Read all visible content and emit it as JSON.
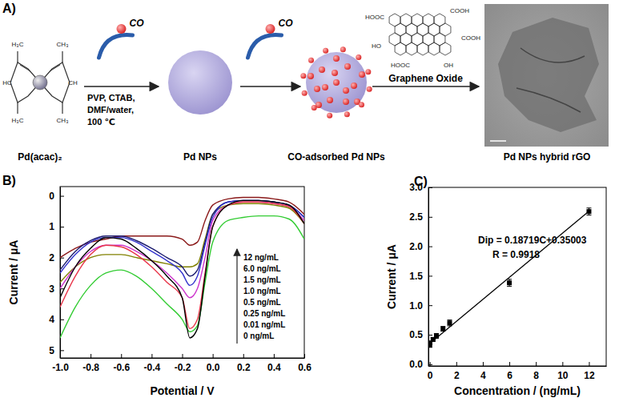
{
  "scheme": {
    "title": "A)",
    "steps": [
      {
        "label": "Pd(acac)₂"
      },
      {
        "label": "Pd NPs"
      },
      {
        "label": "CO-adsorbed Pd NPs"
      },
      {
        "label": "Pd NPs hybrid rGO"
      }
    ],
    "arrows": [
      {
        "molecule": "CO",
        "conditions": [
          "PVP, CTAB,",
          "DMF/water,",
          "100 ℃"
        ]
      },
      {
        "molecule": "CO"
      },
      {
        "label": "Graphene Oxide"
      }
    ],
    "acac_atoms": [
      "H₃C",
      "HC",
      "H₃C",
      "CH₃",
      "CH",
      "CH₃"
    ],
    "go_groups": [
      "HOOC",
      "COOH",
      "HO",
      "COOH",
      "HOOC",
      "OH"
    ]
  },
  "chart_data": [
    {
      "type": "line",
      "title": "B)",
      "x_label": "Potential / V",
      "y_label": "Current / μA",
      "x": [
        -1.0,
        -0.9,
        -0.8,
        -0.7,
        -0.6,
        -0.5,
        -0.4,
        -0.3,
        -0.2,
        -0.15,
        -0.1,
        -0.05,
        0.0,
        0.1,
        0.2,
        0.3,
        0.4,
        0.5,
        0.6
      ],
      "series": [
        {
          "name": "12 ng/mL",
          "color": "#8b1a1a",
          "values": [
            2.0,
            1.7,
            1.5,
            1.4,
            1.3,
            1.3,
            1.3,
            1.3,
            1.4,
            1.6,
            1.5,
            0.8,
            0.3,
            0.1,
            0.05,
            0.05,
            0.1,
            0.2,
            0.6
          ]
        },
        {
          "name": "6.0 ng/mL",
          "color": "#808000",
          "values": [
            2.8,
            2.3,
            2.0,
            1.9,
            1.9,
            2.0,
            2.1,
            2.2,
            2.3,
            2.3,
            2.2,
            1.4,
            0.6,
            0.3,
            0.25,
            0.25,
            0.3,
            0.4,
            0.9
          ]
        },
        {
          "name": "1.5 ng/mL",
          "color": "#1a1a6e",
          "values": [
            2.4,
            1.8,
            1.45,
            1.3,
            1.3,
            1.45,
            1.7,
            2.0,
            2.3,
            2.6,
            2.4,
            1.5,
            0.6,
            0.2,
            0.15,
            0.15,
            0.2,
            0.3,
            0.7
          ]
        },
        {
          "name": "1.0 ng/mL",
          "color": "#3333cc",
          "values": [
            2.5,
            1.9,
            1.5,
            1.35,
            1.35,
            1.5,
            1.8,
            2.1,
            2.5,
            2.9,
            2.6,
            1.6,
            0.7,
            0.2,
            0.15,
            0.15,
            0.2,
            0.3,
            0.7
          ]
        },
        {
          "name": "0.5 ng/mL",
          "color": "#cc33cc",
          "values": [
            3.0,
            2.3,
            1.8,
            1.6,
            1.6,
            1.8,
            2.1,
            2.5,
            3.0,
            3.3,
            3.0,
            2.0,
            0.8,
            0.3,
            0.2,
            0.2,
            0.25,
            0.35,
            0.8
          ]
        },
        {
          "name": "0.25 ng/mL",
          "color": "#e8364a",
          "values": [
            3.6,
            2.6,
            1.9,
            1.6,
            1.65,
            1.9,
            2.3,
            2.8,
            3.3,
            4.3,
            4.0,
            2.5,
            1.0,
            0.3,
            0.2,
            0.2,
            0.25,
            0.35,
            0.9
          ]
        },
        {
          "name": "0.01 ng/mL",
          "color": "#33cc33",
          "values": [
            4.6,
            3.6,
            2.9,
            2.5,
            2.4,
            2.6,
            3.0,
            3.5,
            4.0,
            4.4,
            4.2,
            2.8,
            1.5,
            0.8,
            0.7,
            0.65,
            0.65,
            0.75,
            1.4
          ]
        },
        {
          "name": "0 ng/mL",
          "color": "#000000",
          "values": [
            3.3,
            2.3,
            1.7,
            1.35,
            1.4,
            1.7,
            2.1,
            2.6,
            3.3,
            4.6,
            4.3,
            2.6,
            1.0,
            0.3,
            0.15,
            0.15,
            0.2,
            0.3,
            0.9
          ]
        }
      ],
      "xlim": [
        -1.0,
        0.6
      ],
      "xticks": [
        {
          "value": -1.0,
          "label": "-1.0"
        },
        {
          "value": -0.8,
          "label": "-0.8"
        },
        {
          "value": -0.6,
          "label": "-0.6"
        },
        {
          "value": -0.4,
          "label": "-0.4"
        },
        {
          "value": -0.2,
          "label": "-0.2"
        },
        {
          "value": 0.0,
          "label": "0.0"
        },
        {
          "value": 0.2,
          "label": "0.2"
        },
        {
          "value": 0.4,
          "label": "0.4"
        },
        {
          "value": 0.6,
          "label": "0.6"
        }
      ],
      "ylim": [
        5.25,
        -0.3
      ],
      "yticks": [
        0,
        1,
        2,
        3,
        4,
        5
      ],
      "legend": "right"
    },
    {
      "type": "scatter",
      "title": "C)",
      "x_label": "Concentration / (ng/mL)",
      "y_label": "Current / μA",
      "annotations": [
        "Dip = 0.18719C+0.35003",
        "R = 0.9918"
      ],
      "series": [
        {
          "type": "scatter",
          "marker": "square",
          "color": "#000000",
          "x": [
            0,
            0.01,
            0.25,
            0.5,
            1.0,
            1.5,
            6.0,
            12
          ],
          "values": [
            0.32,
            0.36,
            0.42,
            0.48,
            0.6,
            0.7,
            1.38,
            2.59
          ],
          "errors": [
            0.03,
            0.03,
            0.03,
            0.04,
            0.04,
            0.05,
            0.06,
            0.06
          ]
        },
        {
          "type": "line",
          "color": "#000000",
          "x": [
            0,
            12
          ],
          "values": [
            0.35003,
            2.59631
          ]
        }
      ],
      "xlim": [
        -0.1,
        13.3
      ],
      "xticks": [
        0,
        2,
        4,
        6,
        8,
        10,
        12
      ],
      "ylim": [
        -0.03,
        3.0
      ],
      "yticks": [
        {
          "value": 0.0,
          "label": "0.0"
        },
        {
          "value": 0.5,
          "label": "0.5"
        },
        {
          "value": 1.0,
          "label": "1.0"
        },
        {
          "value": 1.5,
          "label": "1.5"
        },
        {
          "value": 2.0,
          "label": "2.0"
        },
        {
          "value": 2.5,
          "label": "2.5"
        },
        {
          "value": 3.0,
          "label": "3.0"
        }
      ]
    }
  ]
}
